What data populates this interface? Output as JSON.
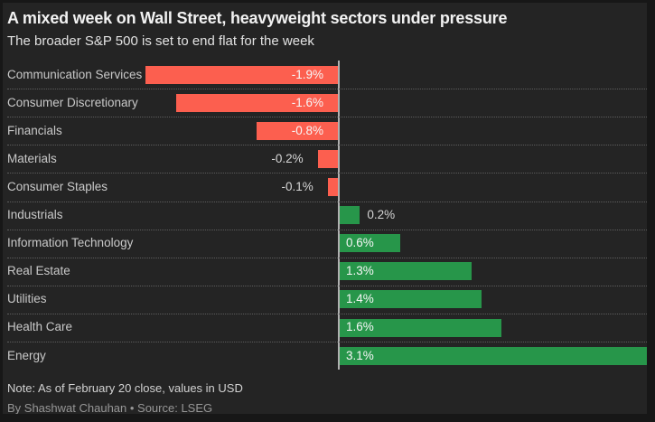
{
  "header": {
    "title": "A mixed week on Wall Street, heavyweight sectors under pressure",
    "subtitle": "The broader S&P 500 is set to end flat for the week"
  },
  "footer": {
    "note": "Note: As of February 20 close, values in USD",
    "byline": "By Shashwat Chauhan • Source: LSEG"
  },
  "chart_data": {
    "type": "bar",
    "orientation": "horizontal",
    "title": "A mixed week on Wall Street, heavyweight sectors under pressure",
    "subtitle": "The broader S&P 500 is set to end flat for the week",
    "unit": "percent weekly change",
    "categories": [
      "Communication Services",
      "Consumer Discretionary",
      "Financials",
      "Materials",
      "Consumer Staples",
      "Industrials",
      "Information Technology",
      "Real Estate",
      "Utilities",
      "Health Care",
      "Energy"
    ],
    "values": [
      -1.9,
      -1.6,
      -0.8,
      -0.2,
      -0.1,
      0.2,
      0.6,
      1.3,
      1.4,
      1.6,
      3.1
    ],
    "value_labels": [
      "-1.9%",
      "-1.6%",
      "-0.8%",
      "-0.2%",
      "-0.1%",
      "0.2%",
      "0.6%",
      "1.3%",
      "1.4%",
      "1.6%",
      "3.1%"
    ],
    "xlim": [
      -1.9,
      3.1
    ],
    "legend": "none",
    "grid": "dotted row separators, vertical zero baseline",
    "colors": {
      "negative_bar": "#fc5f4f",
      "positive_bar": "#27964a",
      "zero_line": "#b0b0b0",
      "separator": "#5d5d5d",
      "panel_background": "#242424",
      "frame_background": "#171717"
    }
  }
}
